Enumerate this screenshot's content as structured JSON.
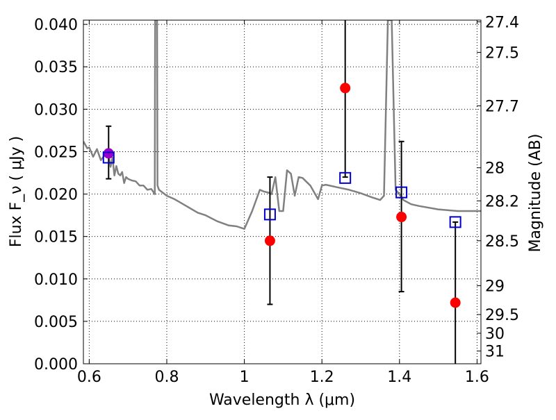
{
  "chart_data": {
    "type": "scatter",
    "xlabel": "Wavelength  λ (μm)",
    "ylabel": "Flux  F_ν  ( μJy )",
    "y2label": "Magnitude (AB)",
    "xlim": [
      0.585,
      1.61
    ],
    "ylim": [
      0.0,
      0.0405
    ],
    "grid": true,
    "x_ticks": [
      0.6,
      0.8,
      1.0,
      1.2,
      1.4,
      1.6
    ],
    "x_tick_labels": [
      "0.6",
      "0.8",
      "1",
      "1.2",
      "1.4",
      "1.6"
    ],
    "y_ticks": [
      0.0,
      0.005,
      0.01,
      0.015,
      0.02,
      0.025,
      0.03,
      0.035,
      0.04
    ],
    "y_tick_labels": [
      "0.000",
      "0.005",
      "0.010",
      "0.015",
      "0.020",
      "0.025",
      "0.030",
      "0.035",
      "0.040"
    ],
    "y2_ticks": [
      {
        "label": "27.4",
        "flux": 0.0403
      },
      {
        "label": "27.5",
        "flux": 0.0367
      },
      {
        "label": "27.7",
        "flux": 0.0304
      },
      {
        "label": "28",
        "flux": 0.0231
      },
      {
        "label": "28.2",
        "flux": 0.0192
      },
      {
        "label": "28.5",
        "flux": 0.0145
      },
      {
        "label": "29",
        "flux": 0.0092
      },
      {
        "label": "29.5",
        "flux": 0.0058
      },
      {
        "label": "30",
        "flux": 0.0036
      },
      {
        "label": "31",
        "flux": 0.0015
      }
    ],
    "colors": {
      "model": "#808080",
      "observed": "#ff0000",
      "synthetic": "#0000cc",
      "overlap": "#9900cc",
      "errorbar": "#000000"
    },
    "model_spectrum": {
      "x": [
        0.585,
        0.595,
        0.6,
        0.61,
        0.62,
        0.63,
        0.64,
        0.65,
        0.655,
        0.66,
        0.665,
        0.67,
        0.675,
        0.68,
        0.685,
        0.69,
        0.695,
        0.7,
        0.71,
        0.72,
        0.73,
        0.74,
        0.75,
        0.76,
        0.769,
        0.77,
        0.775,
        0.776,
        0.78,
        0.8,
        0.82,
        0.85,
        0.88,
        0.9,
        0.93,
        0.96,
        0.98,
        1.0,
        1.02,
        1.04,
        1.05,
        1.06,
        1.07,
        1.08,
        1.09,
        1.1,
        1.11,
        1.12,
        1.13,
        1.14,
        1.15,
        1.17,
        1.19,
        1.2,
        1.21,
        1.24,
        1.27,
        1.3,
        1.33,
        1.35,
        1.36,
        1.37,
        1.38,
        1.39,
        1.4,
        1.41,
        1.43,
        1.45,
        1.5,
        1.55,
        1.58,
        1.61
      ],
      "y": [
        0.0262,
        0.0254,
        0.0255,
        0.0244,
        0.0253,
        0.024,
        0.0246,
        0.0246,
        0.0232,
        0.0243,
        0.0222,
        0.0233,
        0.0224,
        0.0222,
        0.0226,
        0.0213,
        0.022,
        0.0218,
        0.0216,
        0.0215,
        0.021,
        0.021,
        0.0205,
        0.0206,
        0.02,
        0.0405,
        0.0405,
        0.021,
        0.0205,
        0.0198,
        0.0194,
        0.0186,
        0.0178,
        0.0175,
        0.0168,
        0.0163,
        0.0162,
        0.0159,
        0.018,
        0.0205,
        0.0203,
        0.0202,
        0.02,
        0.022,
        0.018,
        0.018,
        0.0228,
        0.0224,
        0.0198,
        0.022,
        0.0219,
        0.021,
        0.0194,
        0.021,
        0.0211,
        0.0208,
        0.0205,
        0.0201,
        0.0196,
        0.0193,
        0.0198,
        0.0405,
        0.0405,
        0.0205,
        0.02,
        0.0193,
        0.0188,
        0.0186,
        0.0182,
        0.018,
        0.018,
        0.018
      ]
    },
    "observed": {
      "x": [
        0.65,
        1.066,
        1.26,
        1.405,
        1.544
      ],
      "y": [
        0.0248,
        0.0145,
        0.0325,
        0.0173,
        0.0072
      ],
      "err_low": [
        0.0218,
        0.007,
        0.022,
        0.0085,
        0.0
      ],
      "err_high": [
        0.028,
        0.022,
        0.0405,
        0.0262,
        0.0167
      ]
    },
    "synthetic": {
      "x": [
        0.65,
        1.066,
        1.26,
        1.405,
        1.544
      ],
      "y": [
        0.0243,
        0.0176,
        0.0219,
        0.0202,
        0.0167
      ]
    }
  }
}
